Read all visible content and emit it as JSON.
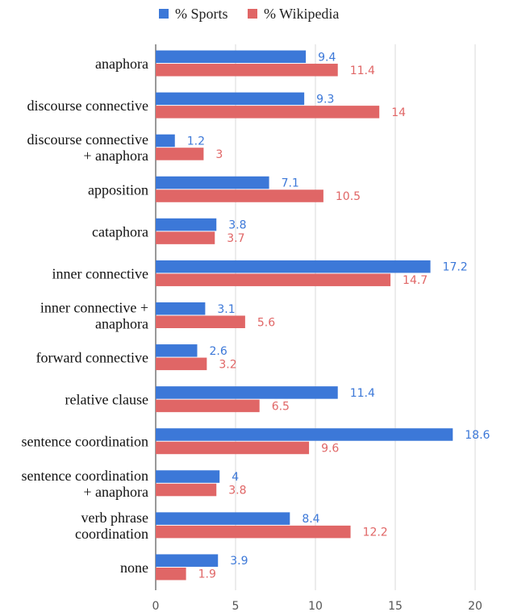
{
  "chart_data": {
    "type": "bar",
    "orientation": "horizontal",
    "title": "",
    "xlabel": "",
    "ylabel": "",
    "xlim": [
      0,
      20
    ],
    "xticks": [
      0,
      5,
      10,
      15,
      20
    ],
    "grid": true,
    "legend_position": "top",
    "categories": [
      [
        "anaphora"
      ],
      [
        "discourse connective"
      ],
      [
        "discourse connective",
        "+ anaphora"
      ],
      [
        "apposition"
      ],
      [
        "cataphora"
      ],
      [
        "inner connective"
      ],
      [
        "inner connective +",
        "anaphora"
      ],
      [
        "forward connective"
      ],
      [
        "relative clause"
      ],
      [
        "sentence coordination"
      ],
      [
        "sentence coordination",
        "+ anaphora"
      ],
      [
        "verb phrase",
        "coordination"
      ],
      [
        "none"
      ]
    ],
    "series": [
      {
        "name": "% Sports",
        "color": "#3c78d8",
        "values": [
          9.4,
          9.3,
          1.2,
          7.1,
          3.8,
          17.2,
          3.1,
          2.6,
          11.4,
          18.6,
          4,
          8.4,
          3.9
        ]
      },
      {
        "name": "% Wikipedia",
        "color": "#e06666",
        "values": [
          11.4,
          14,
          3,
          10.5,
          3.7,
          14.7,
          5.6,
          3.2,
          6.5,
          9.6,
          3.8,
          12.2,
          1.9
        ]
      }
    ]
  }
}
